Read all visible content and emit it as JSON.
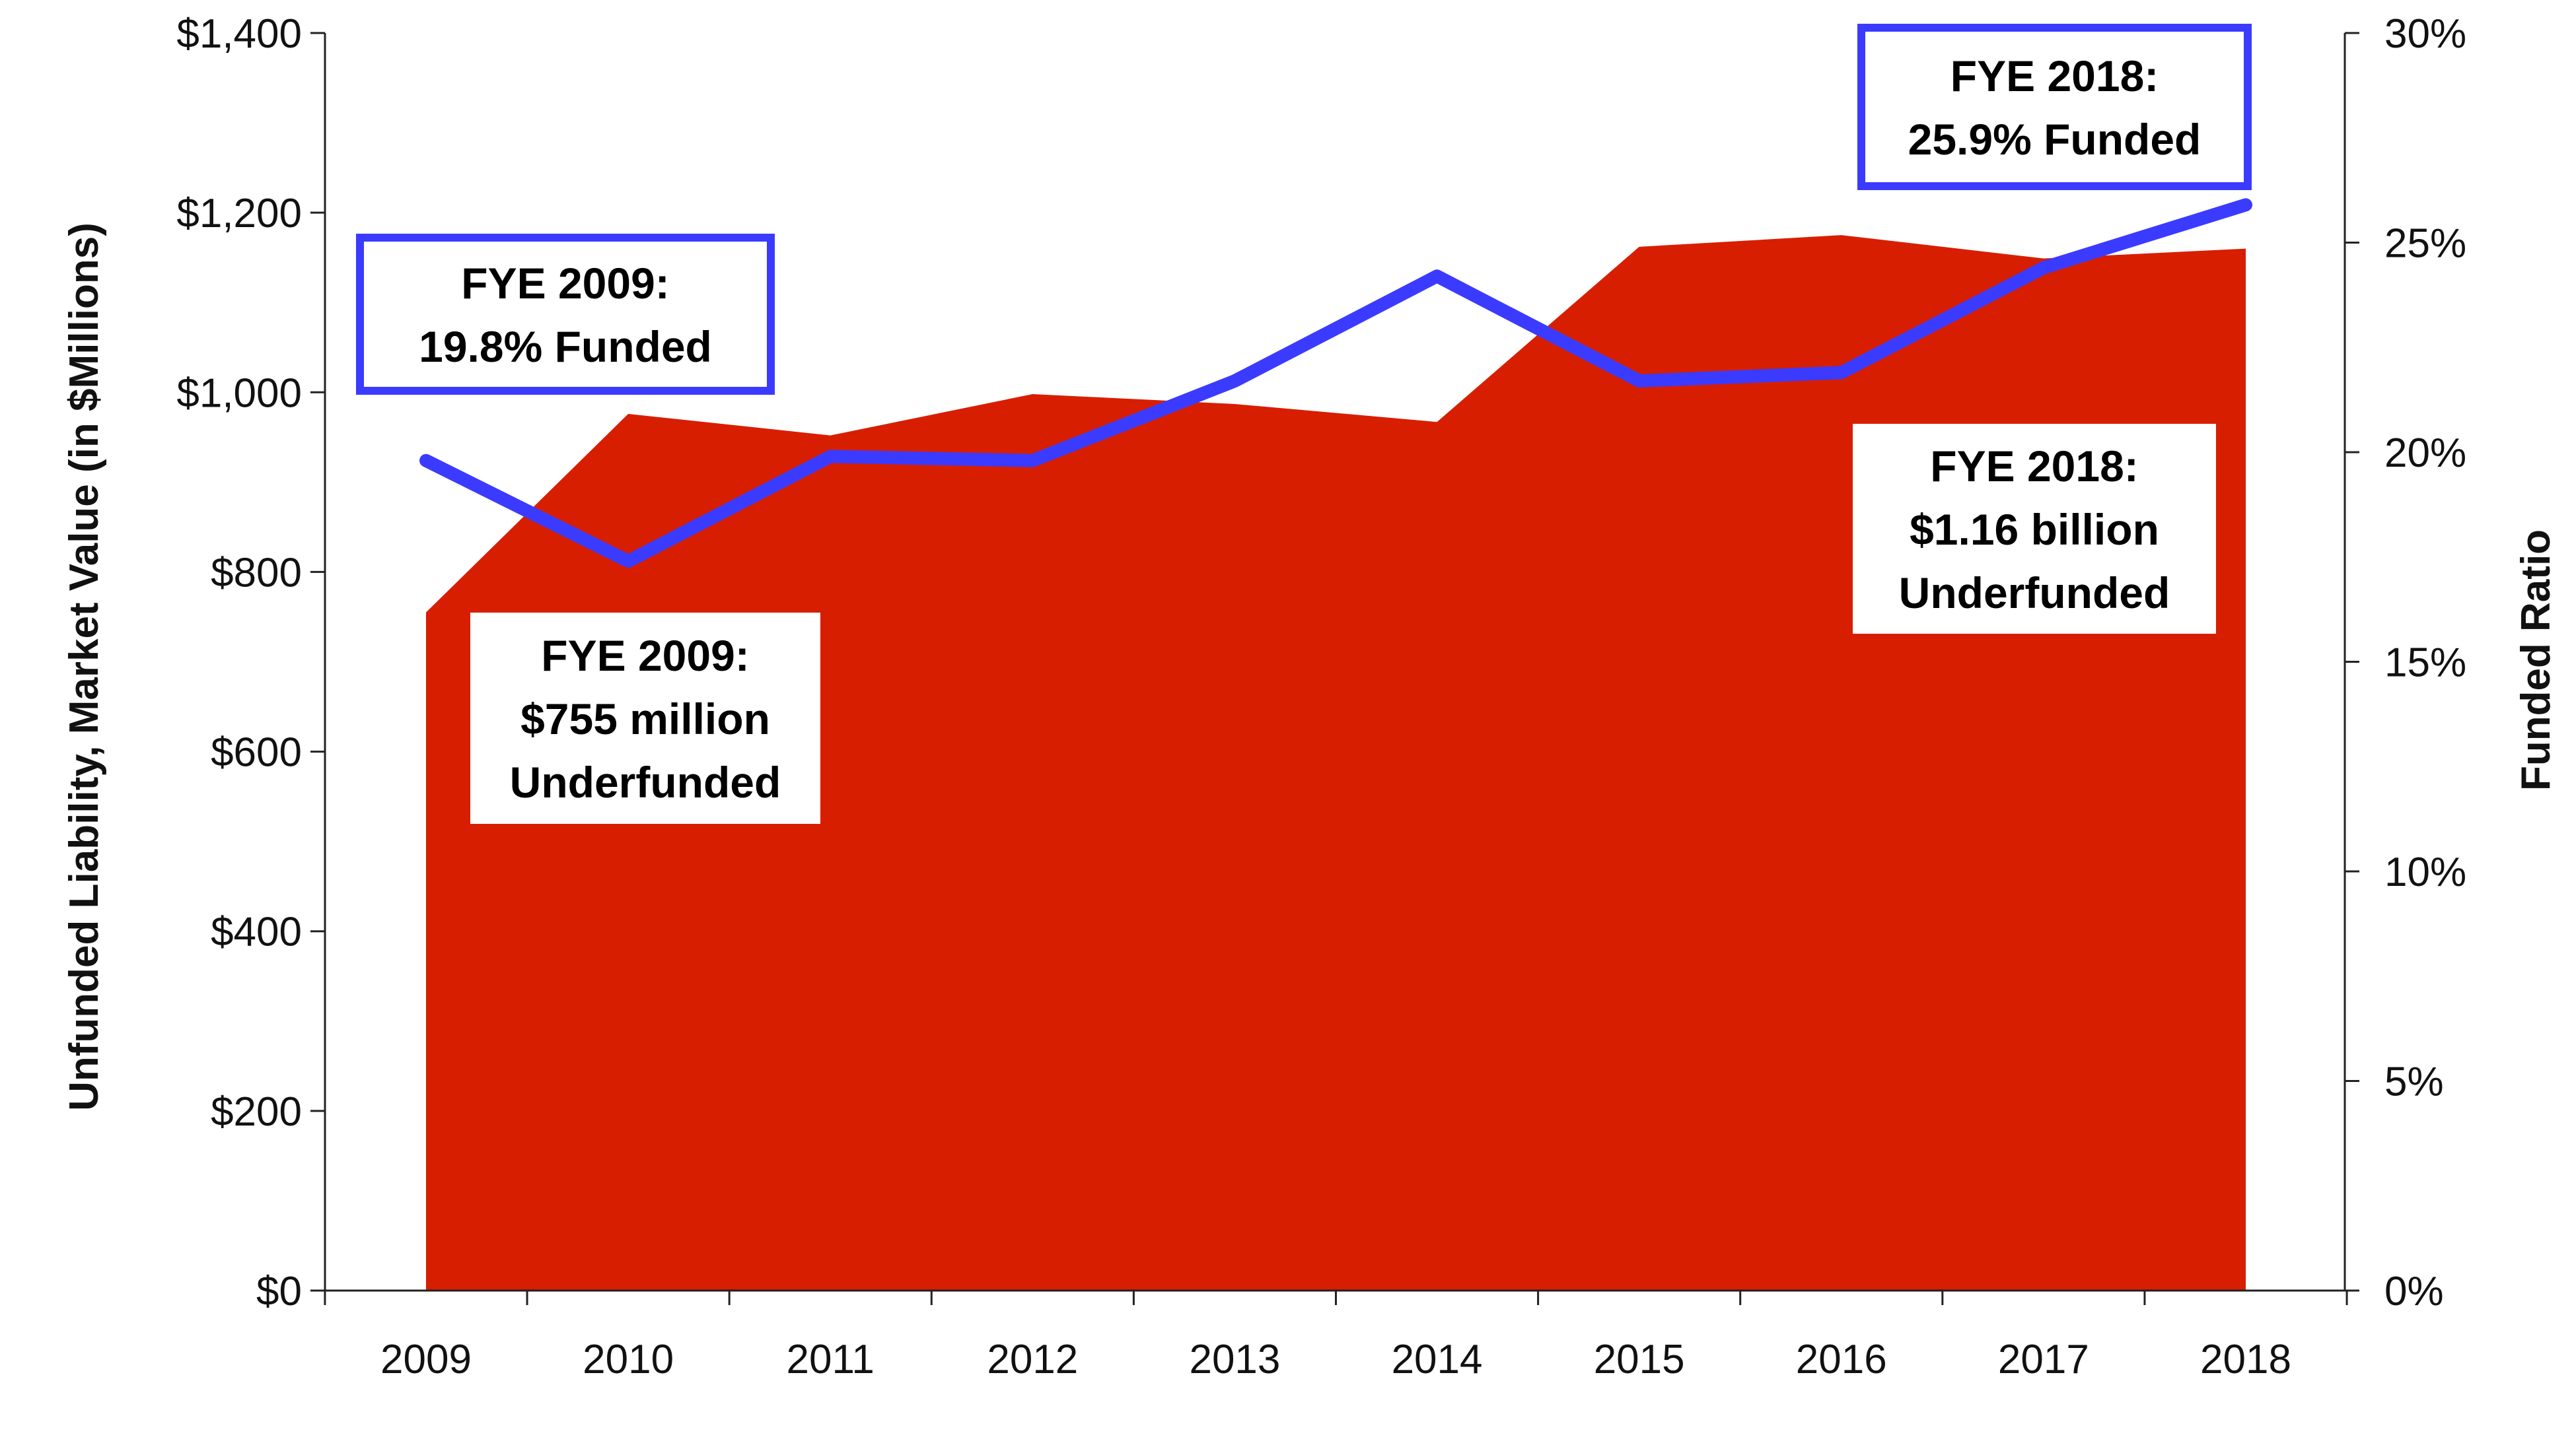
{
  "chart_data": {
    "type": "area+line",
    "categories": [
      "2009",
      "2010",
      "2011",
      "2012",
      "2013",
      "2014",
      "2015",
      "2016",
      "2017",
      "2018"
    ],
    "series": [
      {
        "name": "Unfunded Liability, Market Value",
        "type": "area",
        "axis": "left",
        "color": "#D81E00",
        "values": [
          755,
          976,
          952,
          998,
          987,
          967,
          1162,
          1175,
          1149,
          1160
        ]
      },
      {
        "name": "Funded Ratio",
        "type": "line",
        "axis": "right",
        "color": "#3B3BFF",
        "values": [
          19.8,
          17.4,
          19.9,
          19.8,
          21.7,
          24.2,
          21.7,
          21.9,
          24.4,
          25.9
        ]
      }
    ],
    "ylabel": "Unfunded Liability, Market Value (in $Millions)",
    "y2label": "Funded Ratio",
    "ylim": [
      0,
      1400
    ],
    "y2lim": [
      0,
      30
    ],
    "yticks": [
      "$0",
      "$200",
      "$400",
      "$600",
      "$800",
      "$1,000",
      "$1,200",
      "$1,400"
    ],
    "y2ticks": [
      "0%",
      "5%",
      "10%",
      "15%",
      "20%",
      "25%",
      "30%"
    ],
    "annotations": [
      {
        "lines": [
          "FYE 2009:",
          "19.8% Funded"
        ],
        "style": "blue-border"
      },
      {
        "lines": [
          "FYE 2009:",
          "$755 million",
          "Underfunded"
        ],
        "style": "white"
      },
      {
        "lines": [
          "FYE 2018:",
          "25.9% Funded"
        ],
        "style": "blue-border"
      },
      {
        "lines": [
          "FYE 2018:",
          "$1.16 billion",
          "Underfunded"
        ],
        "style": "white"
      }
    ]
  }
}
